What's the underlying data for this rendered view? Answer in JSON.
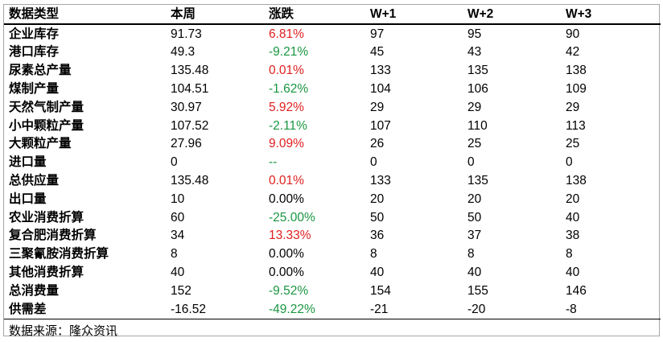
{
  "headers": [
    "数据类型",
    "本周",
    "涨跌",
    "W+1",
    "W+2",
    "W+3"
  ],
  "rows": [
    {
      "label": "企业库存",
      "week": "91.73",
      "change": "6.81%",
      "dir": "pos",
      "w1": "97",
      "w2": "95",
      "w3": "90"
    },
    {
      "label": "港口库存",
      "week": "49.3",
      "change": "-9.21%",
      "dir": "neg",
      "w1": "45",
      "w2": "43",
      "w3": "42"
    },
    {
      "label": "尿素总产量",
      "week": "135.48",
      "change": "0.01%",
      "dir": "pos",
      "w1": "133",
      "w2": "135",
      "w3": "138"
    },
    {
      "label": "煤制产量",
      "week": "104.51",
      "change": "-1.62%",
      "dir": "neg",
      "w1": "104",
      "w2": "106",
      "w3": "109"
    },
    {
      "label": "天然气制产量",
      "week": "30.97",
      "change": "5.92%",
      "dir": "pos",
      "w1": "29",
      "w2": "29",
      "w3": "29"
    },
    {
      "label": "小中颗粒产量",
      "week": "107.52",
      "change": "-2.11%",
      "dir": "neg",
      "w1": "107",
      "w2": "110",
      "w3": "113"
    },
    {
      "label": "大颗粒产量",
      "week": "27.96",
      "change": "9.09%",
      "dir": "pos",
      "w1": "26",
      "w2": "25",
      "w3": "25"
    },
    {
      "label": "进口量",
      "week": "0",
      "change": "--",
      "dir": "neg",
      "w1": "0",
      "w2": "0",
      "w3": "0"
    },
    {
      "label": "总供应量",
      "week": "135.48",
      "change": "0.01%",
      "dir": "pos",
      "w1": "133",
      "w2": "135",
      "w3": "138"
    },
    {
      "label": "出口量",
      "week": "10",
      "change": "0.00%",
      "dir": "neu",
      "w1": "20",
      "w2": "20",
      "w3": "20"
    },
    {
      "label": "农业消费折算",
      "week": "60",
      "change": "-25.00%",
      "dir": "neg",
      "w1": "50",
      "w2": "50",
      "w3": "40"
    },
    {
      "label": "复合肥消费折算",
      "week": "34",
      "change": "13.33%",
      "dir": "pos",
      "w1": "36",
      "w2": "37",
      "w3": "38"
    },
    {
      "label": "三聚氰胺消费折算",
      "week": "8",
      "change": "0.00%",
      "dir": "neu",
      "w1": "8",
      "w2": "8",
      "w3": "8"
    },
    {
      "label": "其他消费折算",
      "week": "40",
      "change": "0.00%",
      "dir": "neu",
      "w1": "40",
      "w2": "40",
      "w3": "40"
    },
    {
      "label": "总消费量",
      "week": "152",
      "change": "-9.52%",
      "dir": "neg",
      "w1": "154",
      "w2": "155",
      "w3": "146"
    },
    {
      "label": "供需差",
      "week": "-16.52",
      "change": "-49.22%",
      "dir": "neg",
      "w1": "-21",
      "w2": "-20",
      "w3": "-8"
    }
  ],
  "colors": {
    "positive": "#e02020",
    "negative": "#1a9641",
    "neutral": "#000000"
  },
  "source": "数据来源：隆众资讯"
}
